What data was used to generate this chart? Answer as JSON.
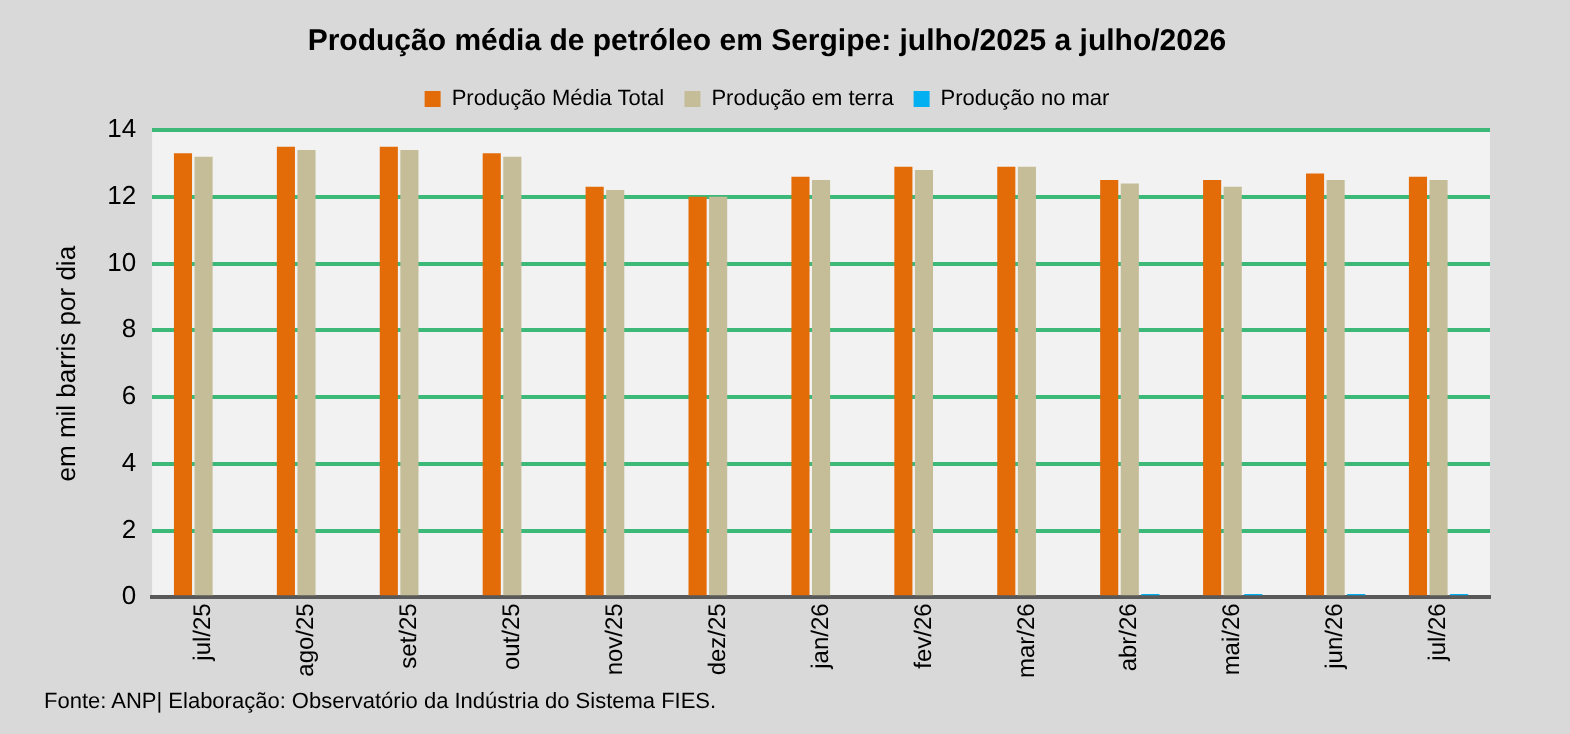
{
  "chart_data": {
    "type": "bar",
    "title": "Produção média de petróleo em Sergipe: julho/2025 a julho/2026",
    "categories": [
      "jul/25",
      "ago/25",
      "set/25",
      "out/25",
      "nov/25",
      "dez/25",
      "jan/26",
      "fev/26",
      "mar/26",
      "abr/26",
      "mai/26",
      "jun/26",
      "jul/26"
    ],
    "series": [
      {
        "name": "Produção Média Total",
        "color": "#e36c09",
        "values": [
          13.3,
          13.5,
          13.5,
          13.3,
          12.3,
          12.0,
          12.6,
          12.9,
          12.9,
          12.5,
          12.5,
          12.7,
          12.6
        ]
      },
      {
        "name": "Produção em terra",
        "color": "#c4bd97",
        "values": [
          13.2,
          13.4,
          13.4,
          13.2,
          12.2,
          12.0,
          12.5,
          12.8,
          12.9,
          12.4,
          12.3,
          12.5,
          12.5
        ]
      },
      {
        "name": "Produção no mar",
        "color": "#00b0f0",
        "values": [
          0,
          0,
          0,
          0,
          0,
          0,
          0,
          0,
          0,
          0.1,
          0.1,
          0.1,
          0.1
        ]
      }
    ],
    "ylabel": "em mil barris por dia",
    "ylim": [
      0,
      14
    ],
    "yticks": [
      0,
      2,
      4,
      6,
      8,
      10,
      12,
      14
    ],
    "grid": "y",
    "legend": "top",
    "annotations": [
      "Fonte: ANP| Elaboração: Observatório da Indústria do Sistema FIES."
    ]
  }
}
